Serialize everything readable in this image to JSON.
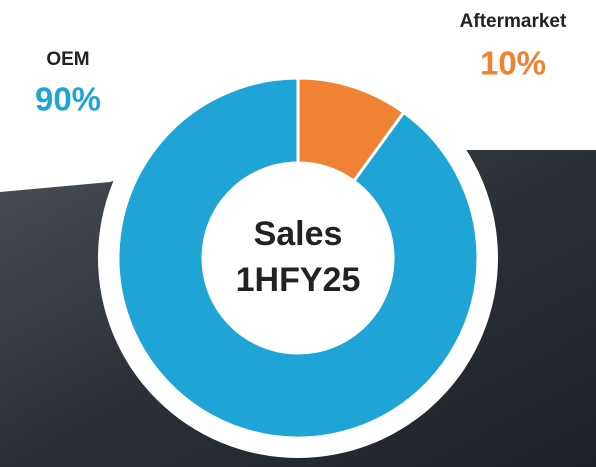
{
  "chart_data": {
    "type": "pie",
    "title": [
      "Sales",
      "1HFY25"
    ],
    "categories": [
      "Aftermarket",
      "OEM"
    ],
    "values": [
      10,
      90
    ],
    "value_labels": [
      "10%",
      "90%"
    ],
    "colors": [
      "#ef8233",
      "#1fa4d6"
    ],
    "donut": true
  }
}
